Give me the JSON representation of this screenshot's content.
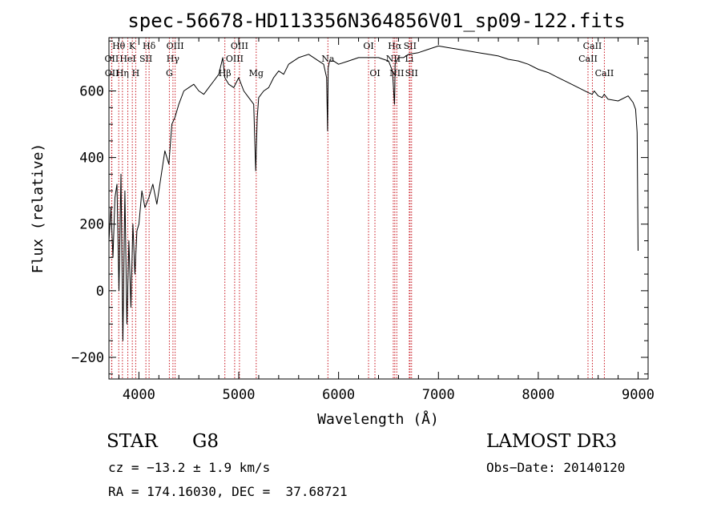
{
  "chart_data": {
    "type": "line",
    "title": "spec-56678-HD113356N364856V01_sp09-122.fits",
    "xlabel": "Wavelength (Å)",
    "ylabel": "Flux (relative)",
    "xlim": [
      3700,
      9100
    ],
    "ylim": [
      -265,
      760
    ],
    "xticks": [
      4000,
      5000,
      6000,
      7000,
      8000,
      9000
    ],
    "yticks": [
      -200,
      0,
      200,
      400,
      600
    ],
    "grid": false,
    "series": [
      {
        "name": "spectrum",
        "x": [
          3700,
          3720,
          3740,
          3760,
          3780,
          3800,
          3820,
          3840,
          3860,
          3880,
          3900,
          3920,
          3940,
          3960,
          3980,
          4000,
          4030,
          4060,
          4100,
          4140,
          4180,
          4220,
          4260,
          4300,
          4330,
          4360,
          4400,
          4450,
          4500,
          4550,
          4600,
          4650,
          4700,
          4750,
          4800,
          4840,
          4860,
          4900,
          4950,
          5000,
          5050,
          5100,
          5150,
          5170,
          5185,
          5200,
          5250,
          5300,
          5350,
          5400,
          5450,
          5500,
          5600,
          5700,
          5800,
          5850,
          5880,
          5890,
          5896,
          5910,
          5950,
          6000,
          6100,
          6200,
          6300,
          6400,
          6500,
          6540,
          6560,
          6563,
          6566,
          6580,
          6600,
          6650,
          6700,
          6800,
          6900,
          7000,
          7100,
          7200,
          7300,
          7400,
          7500,
          7600,
          7700,
          7800,
          7900,
          8000,
          8100,
          8200,
          8300,
          8400,
          8500,
          8540,
          8560,
          8600,
          8640,
          8660,
          8700,
          8800,
          8900,
          8950,
          8975,
          8990,
          9000
        ],
        "y": [
          150,
          250,
          100,
          280,
          320,
          0,
          350,
          -150,
          300,
          -100,
          150,
          -50,
          200,
          50,
          180,
          200,
          300,
          250,
          280,
          320,
          260,
          340,
          420,
          380,
          500,
          520,
          560,
          600,
          610,
          620,
          600,
          590,
          610,
          630,
          650,
          700,
          640,
          620,
          610,
          640,
          600,
          580,
          560,
          360,
          520,
          580,
          600,
          610,
          640,
          660,
          650,
          680,
          700,
          710,
          690,
          680,
          640,
          480,
          670,
          690,
          690,
          680,
          690,
          700,
          700,
          700,
          690,
          660,
          560,
          600,
          680,
          690,
          700,
          700,
          710,
          715,
          725,
          735,
          730,
          725,
          720,
          715,
          710,
          705,
          695,
          690,
          680,
          665,
          655,
          640,
          625,
          610,
          595,
          590,
          600,
          585,
          580,
          590,
          575,
          570,
          585,
          565,
          545,
          475,
          120
        ]
      }
    ],
    "line_markers": [
      {
        "label": "Hθ",
        "x": 3798,
        "row": 1
      },
      {
        "label": "OII",
        "x": 3727,
        "row": 2
      },
      {
        "label": "OII",
        "x": 3729,
        "row": 3
      },
      {
        "label": "K",
        "x": 3934,
        "row": 1
      },
      {
        "label": "HeI",
        "x": 3889,
        "row": 2
      },
      {
        "label": "Hη",
        "x": 3835,
        "row": 3
      },
      {
        "label": "Hδ",
        "x": 4102,
        "row": 1
      },
      {
        "label": "SII",
        "x": 4070,
        "row": 2
      },
      {
        "label": "H",
        "x": 3968,
        "row": 3
      },
      {
        "label": "OIII",
        "x": 4363,
        "row": 1
      },
      {
        "label": "Hγ",
        "x": 4341,
        "row": 2
      },
      {
        "label": "G",
        "x": 4305,
        "row": 3
      },
      {
        "label": "OIII",
        "x": 5007,
        "row": 1
      },
      {
        "label": "OIII",
        "x": 4959,
        "row": 2
      },
      {
        "label": "Hβ",
        "x": 4861,
        "row": 3
      },
      {
        "label": "Mg",
        "x": 5175,
        "row": 3
      },
      {
        "label": "Na",
        "x": 5893,
        "row": 2
      },
      {
        "label": "OI",
        "x": 6300,
        "row": 1
      },
      {
        "label": "OI",
        "x": 6364,
        "row": 3
      },
      {
        "label": "Hα",
        "x": 6563,
        "row": 1
      },
      {
        "label": "NII",
        "x": 6548,
        "row": 2
      },
      {
        "label": "NII",
        "x": 6583,
        "row": 3
      },
      {
        "label": "SII",
        "x": 6716,
        "row": 1
      },
      {
        "label": "Li",
        "x": 6708,
        "row": 2
      },
      {
        "label": "SII",
        "x": 6731,
        "row": 3
      },
      {
        "label": "CaII",
        "x": 8542,
        "row": 1
      },
      {
        "label": "CaII",
        "x": 8498,
        "row": 2
      },
      {
        "label": "CaII",
        "x": 8662,
        "row": 3
      }
    ]
  },
  "info": {
    "object_class": "STAR",
    "subclass": "G8",
    "survey": "LAMOST DR3",
    "redshift_text": "cz = −13.2 ± 1.9 km/s",
    "obs_date": "Obs−Date: 20140120",
    "coordinates": "RA = 174.16030, DEC =  37.68721"
  }
}
